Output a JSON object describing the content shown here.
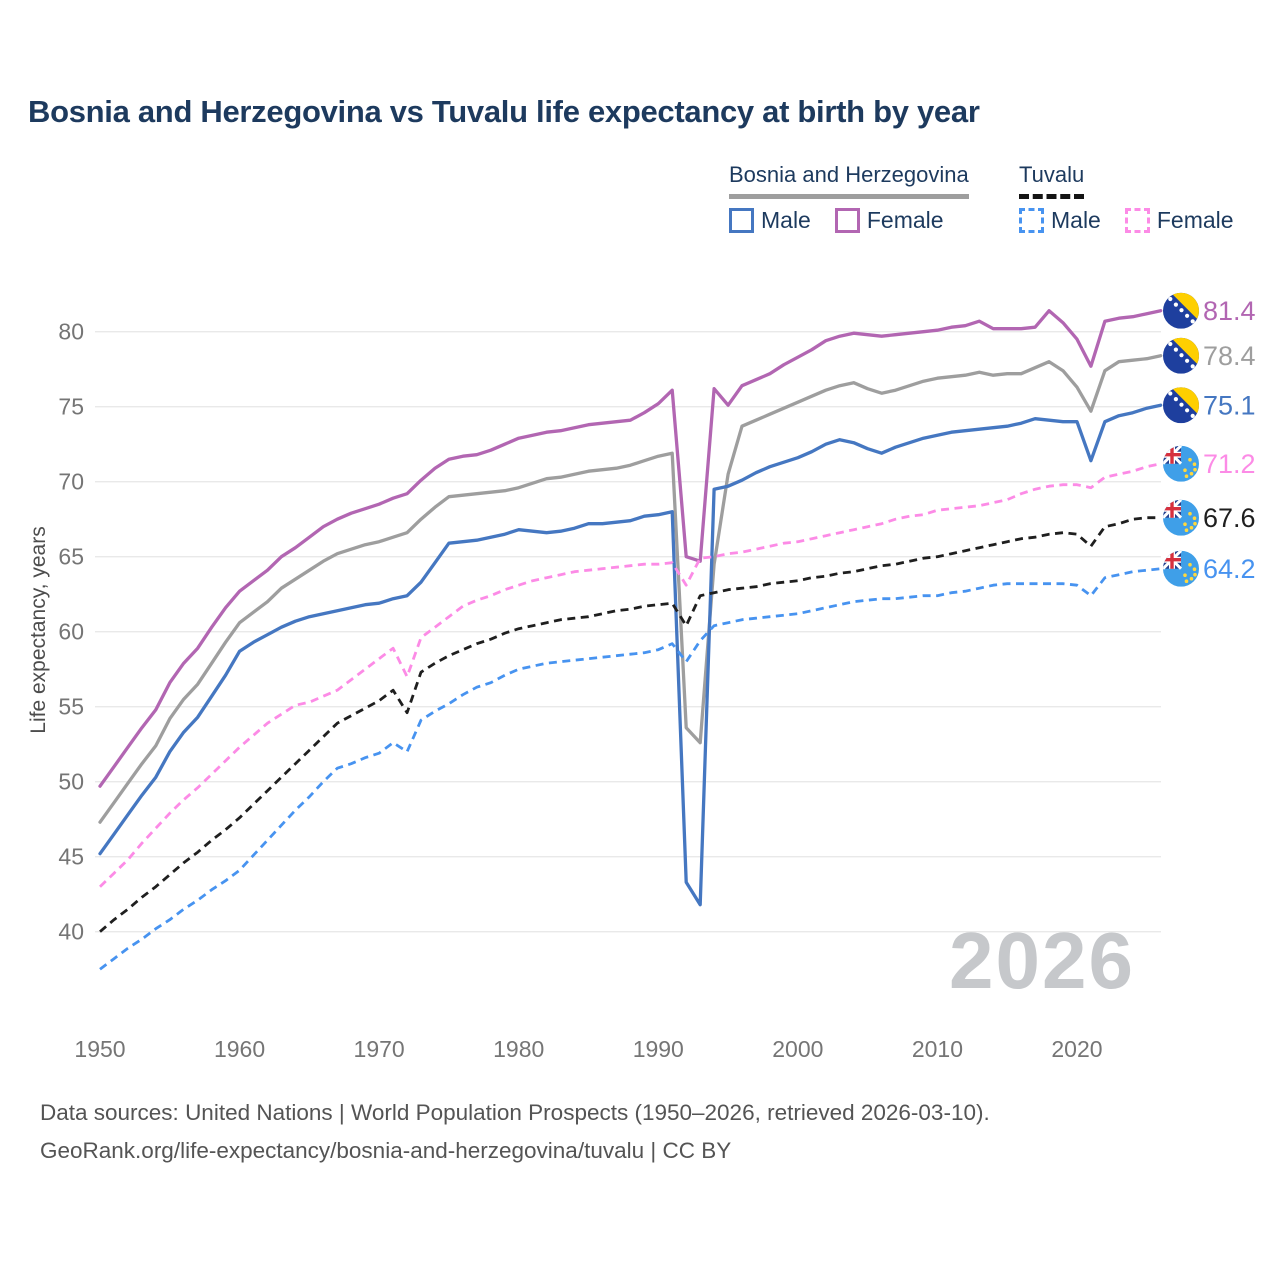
{
  "title": "Bosnia and Herzegovina vs Tuvalu life expectancy at birth by year",
  "watermark": "2026",
  "legend": {
    "bosnia": {
      "label": "Bosnia and Herzegovina",
      "underline": "solid",
      "underline_color": "#9e9e9e",
      "items": [
        {
          "label": "Male",
          "color": "#4577c1",
          "dashed": false
        },
        {
          "label": "Female",
          "color": "#b266b2",
          "dashed": false
        }
      ]
    },
    "tuvalu": {
      "label": "Tuvalu",
      "underline": "dashed",
      "underline_color": "#141414",
      "items": [
        {
          "label": "Male",
          "color": "#4793f0",
          "dashed": true
        },
        {
          "label": "Female",
          "color": "#fc8be6",
          "dashed": true
        }
      ]
    }
  },
  "footer": {
    "line1": "Data sources: United Nations | World Population Prospects (1950–2026, retrieved 2026-03-10).",
    "line2": "GeoRank.org/life-expectancy/bosnia-and-herzegovina/tuvalu | CC BY"
  },
  "chart_data": {
    "type": "line",
    "title": "Bosnia and Herzegovina vs Tuvalu life expectancy at birth by year",
    "xlabel": "",
    "ylabel": "Life expectancy, years",
    "x_range": [
      1950,
      2026
    ],
    "y_range": [
      37,
      82
    ],
    "y_ticks": [
      80,
      75,
      70,
      65,
      60,
      55,
      50,
      45,
      40
    ],
    "x_ticks": [
      1950,
      1960,
      1970,
      1980,
      1990,
      2000,
      2010,
      2020
    ],
    "grid": "horizontal",
    "legend_position": "top-right",
    "series": [
      {
        "id": "ba-female",
        "name": "Bosnia and Herzegovina Female",
        "country": "Bosnia and Herzegovina",
        "sex": "Female",
        "dashed": false,
        "color": "#b266b2",
        "end_label": "81.4",
        "flag": "ba",
        "values": [
          49.7,
          51.0,
          52.3,
          53.6,
          54.8,
          56.6,
          57.9,
          58.9,
          60.3,
          61.6,
          62.7,
          63.4,
          64.1,
          65.0,
          65.6,
          66.3,
          67.0,
          67.5,
          67.9,
          68.2,
          68.5,
          68.9,
          69.2,
          70.1,
          70.9,
          71.5,
          71.7,
          71.8,
          72.1,
          72.5,
          72.9,
          73.1,
          73.3,
          73.4,
          73.6,
          73.8,
          73.9,
          74.0,
          74.1,
          74.6,
          75.2,
          76.1,
          65.0,
          64.7,
          76.2,
          75.1,
          76.4,
          76.8,
          77.2,
          77.8,
          78.3,
          78.8,
          79.4,
          79.7,
          79.9,
          79.8,
          79.7,
          79.8,
          79.9,
          80.0,
          80.1,
          80.3,
          80.4,
          80.7,
          80.2,
          80.2,
          80.2,
          80.3,
          81.4,
          80.6,
          79.5,
          77.7,
          80.7,
          80.9,
          81.0,
          81.2,
          81.4
        ]
      },
      {
        "id": "ba-all",
        "name": "Bosnia and Herzegovina All",
        "country": "Bosnia and Herzegovina",
        "sex": "All",
        "dashed": false,
        "color": "#9e9e9e",
        "end_label": "78.4",
        "flag": "ba",
        "values": [
          47.3,
          48.6,
          49.9,
          51.2,
          52.4,
          54.2,
          55.5,
          56.5,
          57.9,
          59.3,
          60.6,
          61.3,
          62.0,
          62.9,
          63.5,
          64.1,
          64.7,
          65.2,
          65.5,
          65.8,
          66.0,
          66.3,
          66.6,
          67.5,
          68.3,
          69.0,
          69.1,
          69.2,
          69.3,
          69.4,
          69.6,
          69.9,
          70.2,
          70.3,
          70.5,
          70.7,
          70.8,
          70.9,
          71.1,
          71.4,
          71.7,
          71.9,
          53.6,
          52.6,
          64.5,
          70.5,
          73.7,
          74.1,
          74.5,
          74.9,
          75.3,
          75.7,
          76.1,
          76.4,
          76.6,
          76.2,
          75.9,
          76.1,
          76.4,
          76.7,
          76.9,
          77.0,
          77.1,
          77.3,
          77.1,
          77.2,
          77.2,
          77.6,
          78.0,
          77.4,
          76.3,
          74.7,
          77.4,
          78.0,
          78.1,
          78.2,
          78.4
        ]
      },
      {
        "id": "ba-male",
        "name": "Bosnia and Herzegovina Male",
        "country": "Bosnia and Herzegovina",
        "sex": "Male",
        "dashed": false,
        "color": "#4577c1",
        "end_label": "75.1",
        "flag": "ba",
        "values": [
          45.2,
          46.5,
          47.8,
          49.1,
          50.3,
          52.0,
          53.3,
          54.3,
          55.7,
          57.1,
          58.7,
          59.3,
          59.8,
          60.3,
          60.7,
          61.0,
          61.2,
          61.4,
          61.6,
          61.8,
          61.9,
          62.2,
          62.4,
          63.3,
          64.6,
          65.9,
          66.0,
          66.1,
          66.3,
          66.5,
          66.8,
          66.7,
          66.6,
          66.7,
          66.9,
          67.2,
          67.2,
          67.3,
          67.4,
          67.7,
          67.8,
          68.0,
          43.3,
          41.8,
          69.5,
          69.7,
          70.1,
          70.6,
          71.0,
          71.3,
          71.6,
          72.0,
          72.5,
          72.8,
          72.6,
          72.2,
          71.9,
          72.3,
          72.6,
          72.9,
          73.1,
          73.3,
          73.4,
          73.5,
          73.6,
          73.7,
          73.9,
          74.2,
          74.1,
          74.0,
          74.0,
          71.4,
          74.0,
          74.4,
          74.6,
          74.9,
          75.1
        ]
      },
      {
        "id": "tv-female",
        "name": "Tuvalu Female",
        "country": "Tuvalu",
        "sex": "Female",
        "dashed": true,
        "color": "#fc8be6",
        "end_label": "71.2",
        "flag": "tv",
        "values": [
          43.0,
          43.9,
          44.8,
          45.9,
          46.9,
          47.9,
          48.8,
          49.6,
          50.5,
          51.4,
          52.3,
          53.1,
          53.9,
          54.5,
          55.1,
          55.3,
          55.7,
          56.1,
          56.8,
          57.5,
          58.2,
          58.9,
          57.0,
          59.6,
          60.3,
          61.0,
          61.7,
          62.1,
          62.4,
          62.8,
          63.1,
          63.4,
          63.6,
          63.8,
          64.0,
          64.1,
          64.2,
          64.3,
          64.4,
          64.5,
          64.5,
          64.6,
          63.1,
          64.9,
          65.0,
          65.2,
          65.3,
          65.5,
          65.7,
          65.9,
          66.0,
          66.2,
          66.4,
          66.6,
          66.8,
          67.0,
          67.2,
          67.5,
          67.7,
          67.8,
          68.1,
          68.2,
          68.3,
          68.4,
          68.6,
          68.8,
          69.2,
          69.5,
          69.7,
          69.8,
          69.8,
          69.6,
          70.3,
          70.5,
          70.7,
          71.0,
          71.2
        ]
      },
      {
        "id": "tv-all",
        "name": "Tuvalu All",
        "country": "Tuvalu",
        "sex": "All",
        "dashed": true,
        "color": "#1f1f1f",
        "end_label": "67.6",
        "flag": "tv",
        "values": [
          40.0,
          40.8,
          41.5,
          42.3,
          43.0,
          43.8,
          44.6,
          45.3,
          46.1,
          46.8,
          47.6,
          48.5,
          49.4,
          50.3,
          51.2,
          52.1,
          53.0,
          53.9,
          54.4,
          54.9,
          55.4,
          56.1,
          54.6,
          57.3,
          57.9,
          58.4,
          58.8,
          59.2,
          59.5,
          59.9,
          60.2,
          60.4,
          60.6,
          60.8,
          60.9,
          61.0,
          61.2,
          61.4,
          61.5,
          61.7,
          61.8,
          61.9,
          60.4,
          62.4,
          62.6,
          62.8,
          62.9,
          63.0,
          63.2,
          63.3,
          63.4,
          63.6,
          63.7,
          63.9,
          64.0,
          64.2,
          64.4,
          64.5,
          64.7,
          64.9,
          65.0,
          65.2,
          65.4,
          65.6,
          65.8,
          66.0,
          66.2,
          66.3,
          66.5,
          66.6,
          66.5,
          65.7,
          67.0,
          67.2,
          67.5,
          67.6,
          67.6
        ]
      },
      {
        "id": "tv-male",
        "name": "Tuvalu Male",
        "country": "Tuvalu",
        "sex": "Male",
        "dashed": true,
        "color": "#4793f0",
        "end_label": "64.2",
        "flag": "tv",
        "values": [
          37.5,
          38.2,
          38.9,
          39.5,
          40.2,
          40.8,
          41.5,
          42.1,
          42.8,
          43.4,
          44.1,
          45.1,
          46.1,
          47.1,
          48.1,
          49.0,
          50.0,
          50.9,
          51.2,
          51.6,
          51.9,
          52.6,
          52.0,
          54.1,
          54.7,
          55.2,
          55.8,
          56.3,
          56.6,
          57.1,
          57.5,
          57.7,
          57.9,
          58.0,
          58.1,
          58.2,
          58.3,
          58.4,
          58.5,
          58.6,
          58.8,
          59.2,
          58.0,
          59.4,
          60.4,
          60.6,
          60.8,
          60.9,
          61.0,
          61.1,
          61.2,
          61.4,
          61.6,
          61.8,
          62.0,
          62.1,
          62.2,
          62.2,
          62.3,
          62.4,
          62.4,
          62.6,
          62.7,
          62.9,
          63.1,
          63.2,
          63.2,
          63.2,
          63.2,
          63.2,
          63.1,
          62.4,
          63.6,
          63.8,
          64.0,
          64.1,
          64.2
        ]
      }
    ]
  }
}
